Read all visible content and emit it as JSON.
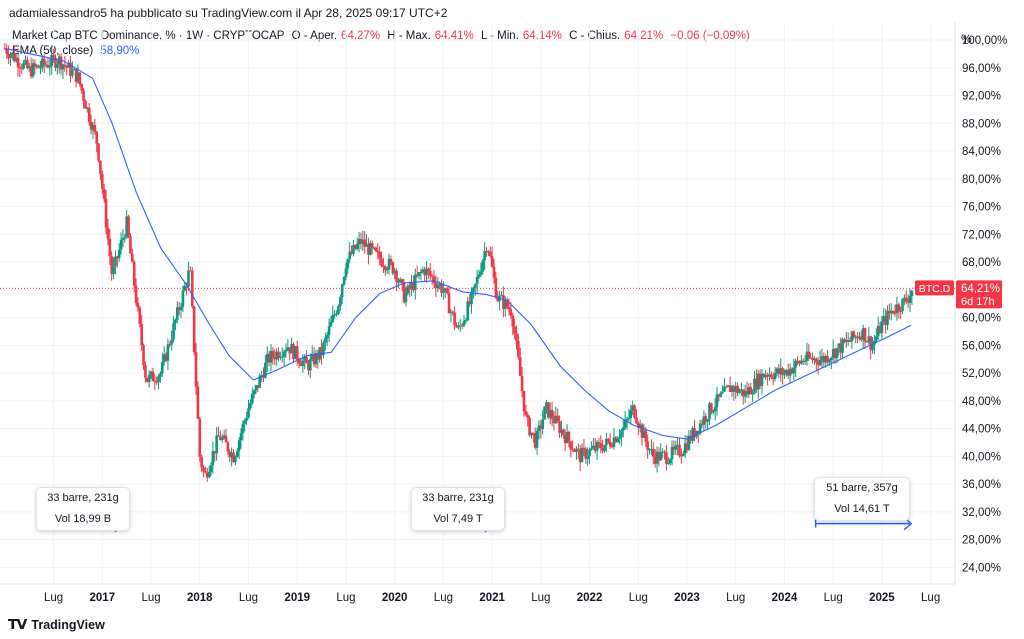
{
  "header": {
    "published_line": "adamialessandro5 ha pubblicato su TradingView.com il Apr 28, 2025 09:17 UTC+2"
  },
  "legend": {
    "symbol_desc": "Market Cap BTC Dominance, % · 1W · CRYPTOCAP",
    "open_label": "O - Aper.",
    "open_value": "64,27%",
    "high_label": "H - Max.",
    "high_value": "64,41%",
    "low_label": "L - Min.",
    "low_value": "64,14%",
    "close_label": "C - Chius.",
    "close_value": "64,21%",
    "change_value": "−0,06 (−0,09%)",
    "ema_label": "EMA (50, close)",
    "ema_value": "58,90%"
  },
  "price_axis": {
    "unit": "%",
    "ticks": [
      "100,00%",
      "96,00%",
      "92,00%",
      "88,00%",
      "84,00%",
      "80,00%",
      "76,00%",
      "72,00%",
      "68,00%",
      "64,00%",
      "60,00%",
      "56,00%",
      "52,00%",
      "48,00%",
      "44,00%",
      "40,00%",
      "36,00%",
      "32,00%",
      "28,00%",
      "24,00%"
    ],
    "tick_values": [
      100,
      96,
      92,
      88,
      84,
      80,
      76,
      72,
      68,
      64,
      60,
      56,
      52,
      48,
      44,
      40,
      36,
      32,
      28,
      24
    ],
    "symbol_tag": "BTC.D",
    "last_price": "64,21%",
    "countdown": "6d 17h"
  },
  "time_axis": {
    "labels": [
      "Lug",
      "2017",
      "Lug",
      "2018",
      "Lug",
      "2019",
      "Lug",
      "2020",
      "Lug",
      "2021",
      "Lug",
      "2022",
      "Lug",
      "2023",
      "Lug",
      "2024",
      "Lug",
      "2025",
      "Lug"
    ],
    "bold": [
      false,
      true,
      false,
      true,
      false,
      true,
      false,
      true,
      false,
      true,
      false,
      true,
      false,
      true,
      false,
      true,
      false,
      true,
      false
    ],
    "dates": [
      2016.5,
      2017,
      2017.5,
      2018,
      2018.5,
      2019,
      2019.5,
      2020,
      2020.5,
      2021,
      2021.5,
      2022,
      2022.5,
      2023,
      2023.5,
      2024,
      2024.5,
      2025,
      2025.5
    ]
  },
  "callouts": [
    {
      "line1": "33 barre, 231g",
      "line2": "Vol 18,99 B"
    },
    {
      "line1": "33 barre, 231g",
      "line2": "Vol 7,49 T"
    },
    {
      "line1": "51 barre, 357g",
      "line2": "Vol 14,61 T"
    }
  ],
  "footer": {
    "brand": "TradingView"
  },
  "colors": {
    "up": "#089981",
    "down": "#f23645",
    "ema": "#2962ff",
    "measure": "#2962ff",
    "grid": "#f0f3fa"
  },
  "chart_data": {
    "type": "candlestick",
    "interval": "1W",
    "symbol": "BTC.D",
    "ylim": [
      21.6,
      102.6
    ],
    "xlim": [
      2015.95,
      2025.75
    ],
    "y_scale": "linear",
    "grid": true,
    "key_points": [
      {
        "x": 2016.0,
        "y": 98.8
      },
      {
        "x": 2016.25,
        "y": 95.6
      },
      {
        "x": 2016.55,
        "y": 97.2
      },
      {
        "x": 2016.75,
        "y": 94.6
      },
      {
        "x": 2016.95,
        "y": 85.0
      },
      {
        "x": 2017.1,
        "y": 66.0
      },
      {
        "x": 2017.25,
        "y": 73.5
      },
      {
        "x": 2017.45,
        "y": 51.0
      },
      {
        "x": 2017.6,
        "y": 52.0
      },
      {
        "x": 2017.72,
        "y": 58.0
      },
      {
        "x": 2017.9,
        "y": 67.0
      },
      {
        "x": 2018.0,
        "y": 40.0
      },
      {
        "x": 2018.05,
        "y": 37.0
      },
      {
        "x": 2018.2,
        "y": 43.0
      },
      {
        "x": 2018.35,
        "y": 40.0
      },
      {
        "x": 2018.5,
        "y": 47.0
      },
      {
        "x": 2018.7,
        "y": 54.0
      },
      {
        "x": 2018.9,
        "y": 56.0
      },
      {
        "x": 2019.1,
        "y": 53.0
      },
      {
        "x": 2019.25,
        "y": 55.0
      },
      {
        "x": 2019.42,
        "y": 62.0
      },
      {
        "x": 2019.5,
        "y": 68.0
      },
      {
        "x": 2019.65,
        "y": 71.0
      },
      {
        "x": 2019.8,
        "y": 69.0
      },
      {
        "x": 2020.0,
        "y": 67.0
      },
      {
        "x": 2020.1,
        "y": 63.0
      },
      {
        "x": 2020.3,
        "y": 67.0
      },
      {
        "x": 2020.5,
        "y": 64.0
      },
      {
        "x": 2020.65,
        "y": 58.0
      },
      {
        "x": 2020.8,
        "y": 63.0
      },
      {
        "x": 2020.95,
        "y": 71.0
      },
      {
        "x": 2021.05,
        "y": 63.0
      },
      {
        "x": 2021.2,
        "y": 61.0
      },
      {
        "x": 2021.35,
        "y": 45.0
      },
      {
        "x": 2021.45,
        "y": 42.0
      },
      {
        "x": 2021.55,
        "y": 47.0
      },
      {
        "x": 2021.7,
        "y": 44.0
      },
      {
        "x": 2021.9,
        "y": 40.0
      },
      {
        "x": 2022.05,
        "y": 41.0
      },
      {
        "x": 2022.2,
        "y": 42.0
      },
      {
        "x": 2022.35,
        "y": 44.0
      },
      {
        "x": 2022.45,
        "y": 47.0
      },
      {
        "x": 2022.55,
        "y": 43.0
      },
      {
        "x": 2022.65,
        "y": 40.0
      },
      {
        "x": 2022.8,
        "y": 40.0
      },
      {
        "x": 2022.95,
        "y": 41.0
      },
      {
        "x": 2023.1,
        "y": 44.0
      },
      {
        "x": 2023.25,
        "y": 47.0
      },
      {
        "x": 2023.45,
        "y": 50.0
      },
      {
        "x": 2023.6,
        "y": 49.0
      },
      {
        "x": 2023.8,
        "y": 52.0
      },
      {
        "x": 2024.0,
        "y": 52.0
      },
      {
        "x": 2024.2,
        "y": 54.0
      },
      {
        "x": 2024.4,
        "y": 54.0
      },
      {
        "x": 2024.6,
        "y": 56.0
      },
      {
        "x": 2024.8,
        "y": 58.0
      },
      {
        "x": 2024.9,
        "y": 56.0
      },
      {
        "x": 2025.0,
        "y": 59.0
      },
      {
        "x": 2025.1,
        "y": 61.0
      },
      {
        "x": 2025.25,
        "y": 62.5
      },
      {
        "x": 2025.32,
        "y": 64.2
      }
    ],
    "ema_points": [
      {
        "x": 2016.0,
        "y": 98.8
      },
      {
        "x": 2016.6,
        "y": 97.0
      },
      {
        "x": 2016.9,
        "y": 94.5
      },
      {
        "x": 2017.1,
        "y": 88.0
      },
      {
        "x": 2017.35,
        "y": 78.0
      },
      {
        "x": 2017.6,
        "y": 70.0
      },
      {
        "x": 2017.85,
        "y": 65.0
      },
      {
        "x": 2018.1,
        "y": 59.0
      },
      {
        "x": 2018.3,
        "y": 54.5
      },
      {
        "x": 2018.55,
        "y": 51.0
      },
      {
        "x": 2018.8,
        "y": 52.5
      },
      {
        "x": 2019.1,
        "y": 54.5
      },
      {
        "x": 2019.35,
        "y": 55.0
      },
      {
        "x": 2019.6,
        "y": 60.0
      },
      {
        "x": 2019.85,
        "y": 63.5
      },
      {
        "x": 2020.1,
        "y": 65.0
      },
      {
        "x": 2020.4,
        "y": 65.3
      },
      {
        "x": 2020.7,
        "y": 63.7
      },
      {
        "x": 2020.95,
        "y": 63.3
      },
      {
        "x": 2021.15,
        "y": 62.5
      },
      {
        "x": 2021.4,
        "y": 59.0
      },
      {
        "x": 2021.7,
        "y": 53.0
      },
      {
        "x": 2021.95,
        "y": 49.5
      },
      {
        "x": 2022.2,
        "y": 46.5
      },
      {
        "x": 2022.45,
        "y": 44.5
      },
      {
        "x": 2022.75,
        "y": 43.0
      },
      {
        "x": 2023.0,
        "y": 42.5
      },
      {
        "x": 2023.3,
        "y": 44.5
      },
      {
        "x": 2023.6,
        "y": 47.0
      },
      {
        "x": 2023.9,
        "y": 49.5
      },
      {
        "x": 2024.2,
        "y": 51.5
      },
      {
        "x": 2024.5,
        "y": 53.5
      },
      {
        "x": 2024.8,
        "y": 55.5
      },
      {
        "x": 2025.0,
        "y": 56.8
      },
      {
        "x": 2025.3,
        "y": 58.9
      }
    ],
    "measurements": [
      {
        "x_start": 2016.55,
        "x_end": 2017.2,
        "y": 30.0,
        "bars": 33,
        "days": 231
      },
      {
        "x_start": 2020.35,
        "x_end": 2021.0,
        "y": 30.0,
        "bars": 33,
        "days": 231
      },
      {
        "x_start": 2024.32,
        "x_end": 2025.3,
        "y": 30.3,
        "bars": 51,
        "days": 357
      }
    ],
    "last_close": 64.21
  }
}
